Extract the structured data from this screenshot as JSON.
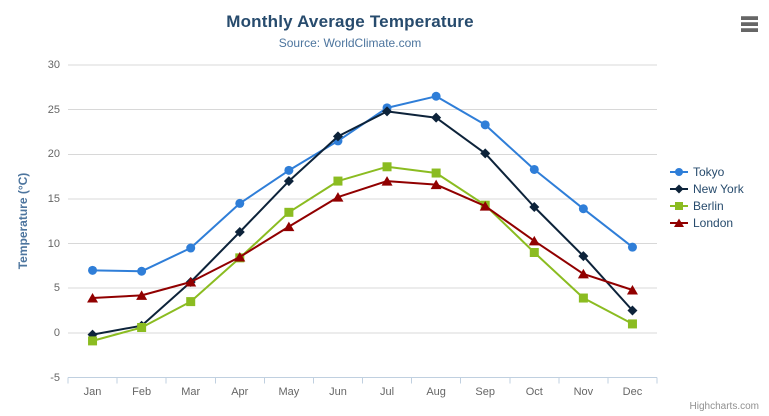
{
  "header": {
    "title": "Monthly Average Temperature",
    "subtitle": "Source: WorldClimate.com"
  },
  "credits": {
    "label": "Highcharts.com"
  },
  "context_menu": {
    "icon": "hamburger-icon"
  },
  "chart_data": {
    "type": "line",
    "title": "Monthly Average Temperature",
    "subtitle": "Source: WorldClimate.com",
    "xlabel": "",
    "ylabel": "Temperature (°C)",
    "categories": [
      "Jan",
      "Feb",
      "Mar",
      "Apr",
      "May",
      "Jun",
      "Jul",
      "Aug",
      "Sep",
      "Oct",
      "Nov",
      "Dec"
    ],
    "ylim": [
      -5,
      30
    ],
    "yticks": [
      -5,
      0,
      5,
      10,
      15,
      20,
      25,
      30
    ],
    "grid": true,
    "legend_position": "right",
    "series": [
      {
        "name": "Tokyo",
        "color": "#2f7ed8",
        "marker": "circle",
        "values": [
          7.0,
          6.9,
          9.5,
          14.5,
          18.2,
          21.5,
          25.2,
          26.5,
          23.3,
          18.3,
          13.9,
          9.6
        ]
      },
      {
        "name": "New York",
        "color": "#0d233a",
        "marker": "diamond",
        "values": [
          -0.2,
          0.8,
          5.7,
          11.3,
          17.0,
          22.0,
          24.8,
          24.1,
          20.1,
          14.1,
          8.6,
          2.5
        ]
      },
      {
        "name": "Berlin",
        "color": "#8bbc21",
        "marker": "square",
        "values": [
          -0.9,
          0.6,
          3.5,
          8.4,
          13.5,
          17.0,
          18.6,
          17.9,
          14.3,
          9.0,
          3.9,
          1.0
        ]
      },
      {
        "name": "London",
        "color": "#910000",
        "marker": "triangle",
        "values": [
          3.9,
          4.2,
          5.7,
          8.5,
          11.9,
          15.2,
          17.0,
          16.6,
          14.2,
          10.3,
          6.6,
          4.8
        ]
      }
    ],
    "colors": {
      "title": "#274b6d",
      "subtitle": "#4d759e",
      "axis_title": "#4d759e",
      "tick_label": "#666666",
      "gridline": "#d8d8d8",
      "axis_line": "#c0d0e0",
      "legend_text": "#274b6d",
      "credits_text": "#909090",
      "background": "#ffffff"
    }
  }
}
